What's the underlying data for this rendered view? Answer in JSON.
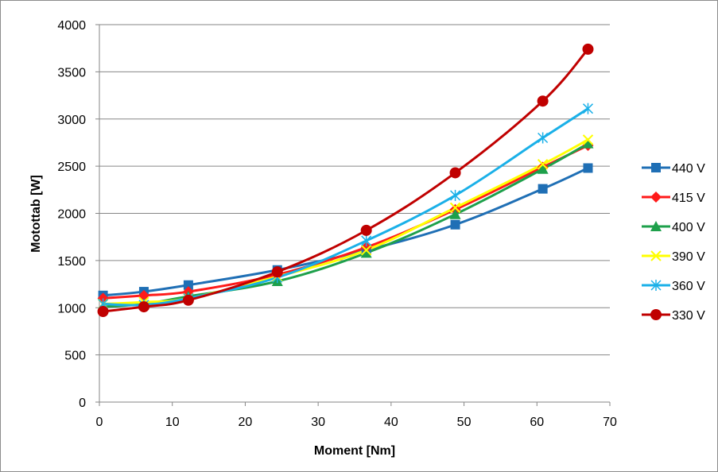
{
  "chart_data": {
    "type": "line",
    "xlabel": "Moment [Nm]",
    "ylabel": "Motottab [W]",
    "xlim": [
      0,
      70
    ],
    "ylim": [
      0,
      4000
    ],
    "xticks": [
      0,
      10,
      20,
      30,
      40,
      50,
      60,
      70
    ],
    "yticks": [
      0,
      500,
      1000,
      1500,
      2000,
      2500,
      3000,
      3500,
      4000
    ],
    "grid": "horizontal",
    "legend_position": "right",
    "x": [
      0.5,
      6.1,
      12.2,
      24.4,
      36.6,
      48.8,
      60.8,
      67.0
    ],
    "series": [
      {
        "name": "440 V",
        "color": "#1f6fb5",
        "marker": "square",
        "values": [
          1130,
          1170,
          1240,
          1400,
          1610,
          1880,
          2260,
          2480
        ]
      },
      {
        "name": "415 V",
        "color": "#ff1a1a",
        "marker": "diamond",
        "values": [
          1100,
          1130,
          1170,
          1350,
          1640,
          2040,
          2490,
          2720
        ]
      },
      {
        "name": "400 V",
        "color": "#1ea04b",
        "marker": "triangle",
        "values": [
          1010,
          1040,
          1120,
          1280,
          1580,
          1990,
          2470,
          2740
        ]
      },
      {
        "name": "390 V",
        "color": "#ffff00",
        "marker": "x",
        "values": [
          1040,
          1060,
          1100,
          1330,
          1610,
          2060,
          2520,
          2780
        ]
      },
      {
        "name": "360 V",
        "color": "#1ab0e8",
        "marker": "star",
        "values": [
          1040,
          1030,
          1100,
          1320,
          1710,
          2190,
          2800,
          3110
        ]
      },
      {
        "name": "330 V",
        "color": "#c00000",
        "marker": "circle",
        "values": [
          960,
          1010,
          1080,
          1380,
          1820,
          2430,
          3190,
          3740
        ]
      }
    ]
  }
}
